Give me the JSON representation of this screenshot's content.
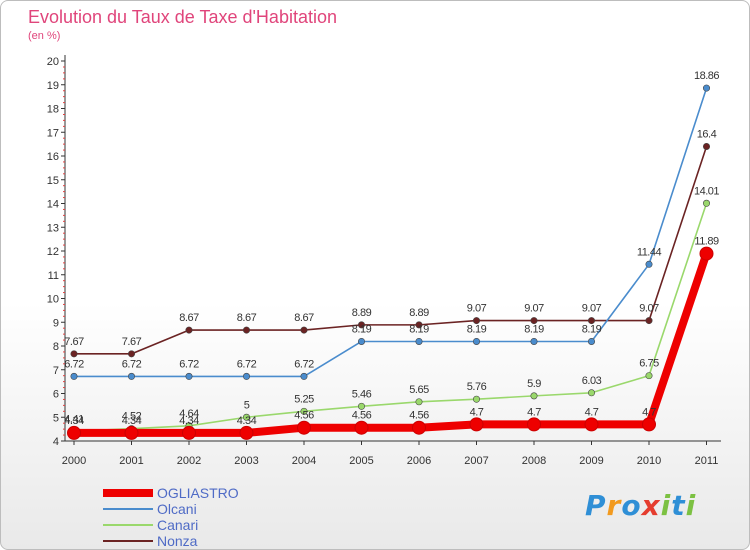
{
  "chart_data": {
    "type": "line",
    "title": "Evolution du Taux de Taxe d'Habitation",
    "subtitle": "(en %)",
    "x": [
      "2000",
      "2001",
      "2002",
      "2003",
      "2004",
      "2005",
      "2006",
      "2007",
      "2008",
      "2009",
      "2010",
      "2011"
    ],
    "ylim": [
      4,
      20
    ],
    "yticks": [
      "4",
      "5",
      "6",
      "7",
      "8",
      "9",
      "10",
      "11",
      "12",
      "13",
      "14",
      "15",
      "16",
      "17",
      "18",
      "19",
      "20"
    ],
    "grid": false,
    "legend_position": "bottom-left",
    "series": [
      {
        "name": "OGLIASTRO",
        "color": "#ee0000",
        "values": [
          4.34,
          4.34,
          4.34,
          4.34,
          4.56,
          4.56,
          4.56,
          4.7,
          4.7,
          4.7,
          4.7,
          11.89
        ],
        "labels": [
          "4.34",
          "4.34",
          "4.34",
          "4.34",
          "4.56",
          "4.56",
          "4.56",
          "4.7",
          "4.7",
          "4.7",
          "4.7",
          "11.89"
        ]
      },
      {
        "name": "Olcani",
        "color": "#4a8ccd",
        "values": [
          6.72,
          6.72,
          6.72,
          6.72,
          6.72,
          8.19,
          8.19,
          8.19,
          8.19,
          8.19,
          11.44,
          18.86
        ],
        "labels": [
          "6.72",
          "6.72",
          "6.72",
          "6.72",
          "6.72",
          "8.19",
          "8.19",
          "8.19",
          "8.19",
          "8.19",
          "11.44",
          "18.86"
        ]
      },
      {
        "name": "Canari",
        "color": "#9ad86c",
        "values": [
          4.41,
          4.52,
          4.64,
          5,
          5.25,
          5.46,
          5.65,
          5.76,
          5.9,
          6.03,
          6.75,
          14.01
        ],
        "labels": [
          "4.41",
          "4.52",
          "4.64",
          "5",
          "5.25",
          "5.46",
          "5.65",
          "5.76",
          "5.9",
          "6.03",
          "6.75",
          "14.01"
        ]
      },
      {
        "name": "Nonza",
        "color": "#6b2323",
        "values": [
          7.67,
          7.67,
          8.67,
          8.67,
          8.67,
          8.89,
          8.89,
          9.07,
          9.07,
          9.07,
          9.07,
          16.4
        ],
        "labels": [
          "7.67",
          "7.67",
          "8.67",
          "8.67",
          "8.67",
          "8.89",
          "8.89",
          "9.07",
          "9.07",
          "9.07",
          "9.07",
          "16.4"
        ]
      }
    ]
  },
  "brand": {
    "letters": [
      "P",
      "r",
      "o",
      "x",
      "i",
      "t",
      "i"
    ],
    "colors": [
      "#2f8fd6",
      "#f29a1f",
      "#2f8fd6",
      "#e53d2f",
      "#7cc142",
      "#2f8fd6",
      "#7cc142"
    ]
  }
}
